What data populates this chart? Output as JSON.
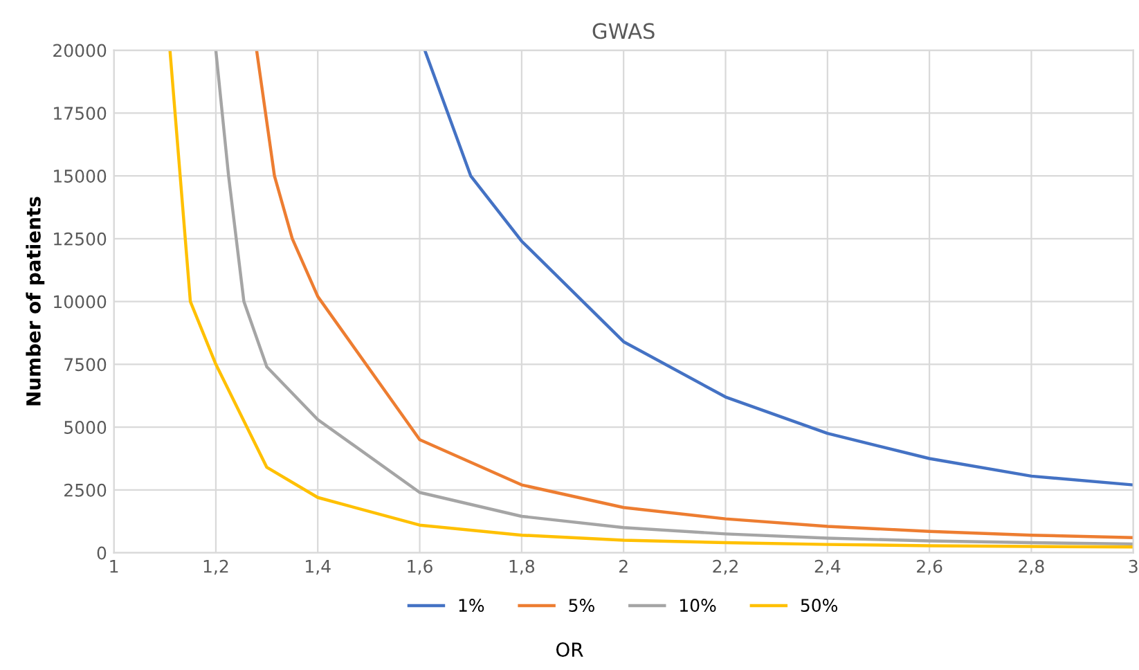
{
  "chart_data": {
    "type": "line",
    "title": "GWAS",
    "xlabel": "OR",
    "ylabel": "Number of patients",
    "xlim": [
      1,
      3
    ],
    "ylim": [
      0,
      20000
    ],
    "xticks": [
      1,
      {
        "value": 1.2,
        "label": "1,2"
      },
      {
        "value": 1.4,
        "label": "1,4"
      },
      {
        "value": 1.6,
        "label": "1,6"
      },
      {
        "value": 1.8,
        "label": "1,8"
      },
      2,
      {
        "value": 2.2,
        "label": "2,2"
      },
      {
        "value": 2.4,
        "label": "2,4"
      },
      {
        "value": 2.6,
        "label": "2,6"
      },
      {
        "value": 2.8,
        "label": "2,8"
      },
      3
    ],
    "yticks": [
      0,
      2500,
      5000,
      7500,
      10000,
      12500,
      15000,
      17500,
      20000
    ],
    "grid": true,
    "legend": "bottom",
    "marker": "none",
    "line_style": "solid",
    "series": [
      {
        "name": "1%",
        "color": "#4472c4",
        "x": [
          1.61,
          1.655,
          1.7,
          1.8,
          2.0,
          2.2,
          2.4,
          2.6,
          2.8,
          3.0
        ],
        "values": [
          20000,
          17500,
          15000,
          12400,
          8400,
          6200,
          4750,
          3750,
          3050,
          2700
        ]
      },
      {
        "name": "5%",
        "color": "#ed7d31",
        "x": [
          1.28,
          1.315,
          1.35,
          1.4,
          1.6,
          1.8,
          2.0,
          2.2,
          2.4,
          2.6,
          2.8,
          3.0
        ],
        "values": [
          20000,
          15000,
          12500,
          10200,
          4500,
          2700,
          1800,
          1350,
          1050,
          850,
          700,
          600
        ]
      },
      {
        "name": "10%",
        "color": "#a5a5a5",
        "x": [
          1.2,
          1.225,
          1.255,
          1.3,
          1.4,
          1.6,
          1.8,
          2.0,
          2.2,
          2.4,
          2.6,
          2.8,
          3.0
        ],
        "values": [
          20000,
          15000,
          10000,
          7400,
          5300,
          2400,
          1450,
          1000,
          750,
          580,
          470,
          400,
          350
        ]
      },
      {
        "name": "50%",
        "color": "#ffc000",
        "x": [
          1.11,
          1.13,
          1.15,
          1.2,
          1.3,
          1.4,
          1.6,
          1.8,
          2.0,
          2.2,
          2.4,
          2.6,
          2.8,
          3.0
        ],
        "values": [
          20000,
          15000,
          10000,
          7500,
          3400,
          2200,
          1100,
          700,
          500,
          400,
          330,
          280,
          250,
          230
        ]
      }
    ]
  }
}
